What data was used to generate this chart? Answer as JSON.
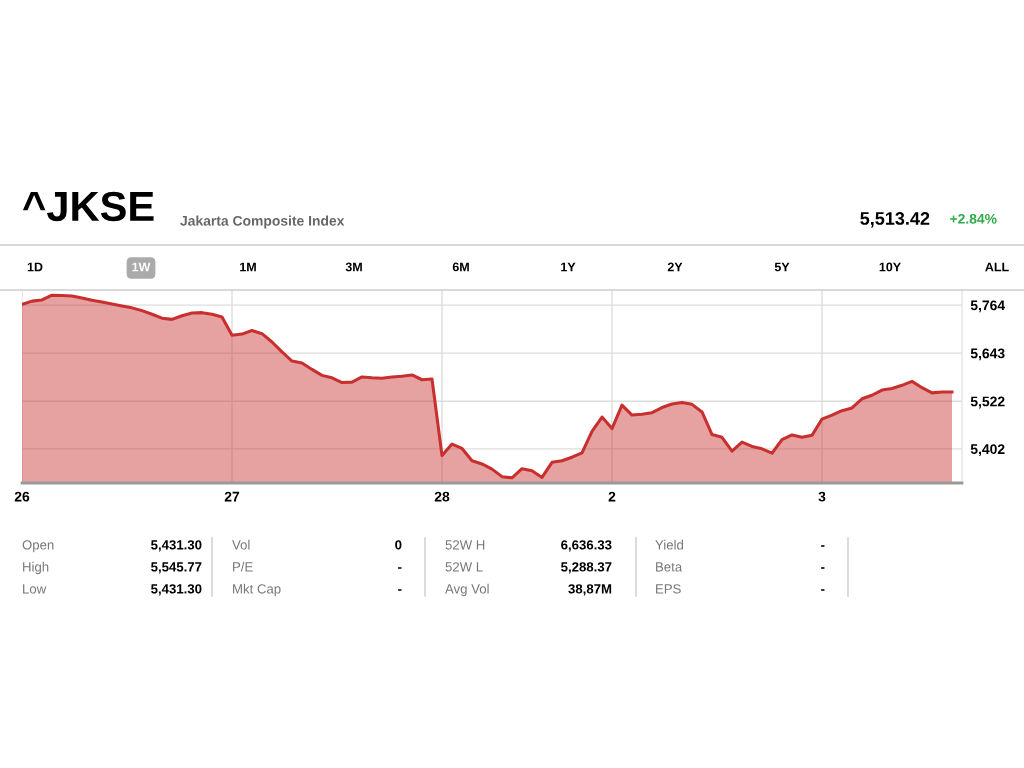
{
  "chart_data": {
    "type": "area",
    "title": "^JKSE",
    "subtitle": "Jakarta Composite Index",
    "categories": [
      "26",
      null,
      null,
      null,
      null,
      null,
      null,
      null,
      null,
      null,
      null,
      null,
      null,
      null,
      null,
      null,
      null,
      null,
      null,
      null,
      null,
      "27",
      null,
      null,
      null,
      null,
      null,
      null,
      null,
      null,
      null,
      null,
      null,
      null,
      null,
      null,
      null,
      null,
      null,
      null,
      null,
      null,
      "28",
      null,
      null,
      null,
      null,
      null,
      null,
      null,
      null,
      null,
      null,
      null,
      null,
      null,
      null,
      null,
      null,
      "2",
      null,
      null,
      null,
      null,
      null,
      null,
      null,
      null,
      null,
      null,
      null,
      null,
      null,
      null,
      null,
      null,
      null,
      null,
      null,
      null,
      "3",
      null,
      null,
      null,
      null,
      null,
      null,
      null,
      null,
      null,
      null,
      null,
      null,
      null
    ],
    "series": [
      {
        "color": "#c8302f",
        "values": [
          5766,
          5774,
          5777,
          5789,
          5788,
          5787,
          5782,
          5776,
          5772,
          5767,
          5762,
          5757,
          5750,
          5741,
          5731,
          5728,
          5737,
          5744,
          5745,
          5741,
          5734,
          5688,
          5691,
          5700,
          5692,
          5671,
          5646,
          5623,
          5618,
          5602,
          5587,
          5581,
          5569,
          5570,
          5583,
          5581,
          5580,
          5583,
          5585,
          5588,
          5576,
          5578,
          5385,
          5414,
          5403,
          5372,
          5364,
          5351,
          5332,
          5329,
          5352,
          5347,
          5330,
          5368,
          5372,
          5381,
          5392,
          5446,
          5482,
          5453,
          5512,
          5487,
          5489,
          5493,
          5506,
          5515,
          5519,
          5514,
          5495,
          5438,
          5431,
          5396,
          5419,
          5408,
          5402,
          5391,
          5425,
          5437,
          5431,
          5436,
          5477,
          5487,
          5498,
          5505,
          5528,
          5537,
          5550,
          5554,
          5562,
          5572,
          5556,
          5543,
          5545,
          5545
        ]
      }
    ],
    "ylim": [
      5316,
      5802
    ],
    "yticks": [
      {
        "value": 5402,
        "label": "5,402"
      },
      {
        "value": 5522,
        "label": "5,522"
      },
      {
        "value": 5643,
        "label": "5,643"
      },
      {
        "value": 5764,
        "label": "5,764"
      }
    ],
    "grid": true,
    "legend": false,
    "annotations": [
      "5,513.42",
      "+2.84%",
      "1D",
      "1W",
      "1M",
      "3M",
      "6M",
      "1Y",
      "2Y",
      "5Y",
      "10Y",
      "ALL",
      "Open",
      "5,431.30",
      "High",
      "5,545.77",
      "Low",
      "5,431.30",
      "Vol",
      "0",
      "P/E",
      "-",
      "Mkt Cap",
      "-",
      "52W H",
      "6,636.33",
      "52W L",
      "5,288.37",
      "Avg Vol",
      "38,87M",
      "Yield",
      "-",
      "Beta",
      "-",
      "EPS",
      "-"
    ]
  }
}
